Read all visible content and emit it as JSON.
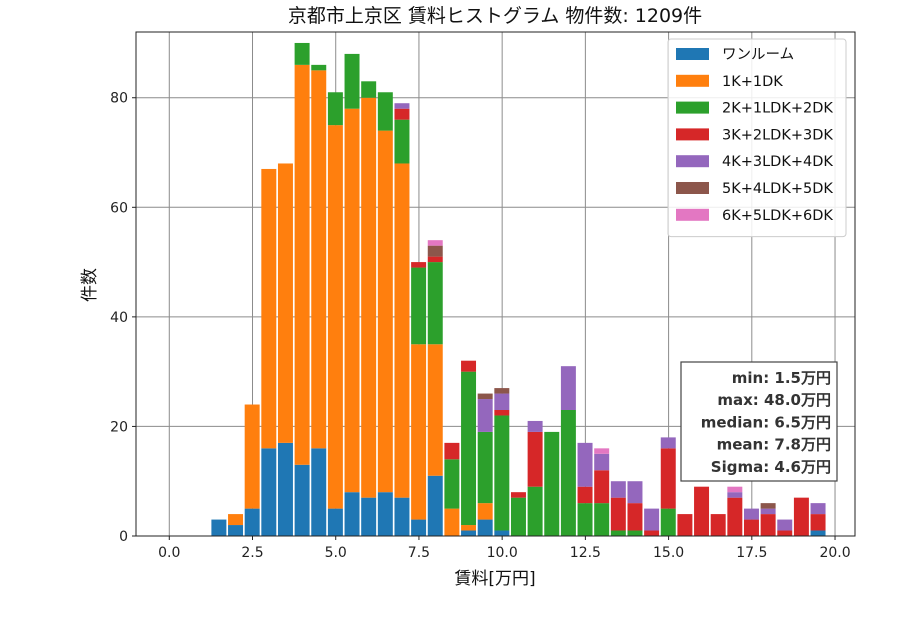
{
  "chart_data": {
    "type": "bar",
    "stacked": true,
    "title": "京都市上京区 賃料ヒストグラム 物件数: 1209件",
    "xlabel": "賃料[万円]",
    "ylabel": "件数",
    "xlim": [
      -1.0,
      20.6
    ],
    "ylim": [
      0,
      92
    ],
    "xticks": [
      "0.0",
      "2.5",
      "5.0",
      "7.5",
      "10.0",
      "12.5",
      "15.0",
      "17.5",
      "20.0"
    ],
    "xtick_values": [
      0,
      2.5,
      5,
      7.5,
      10,
      12.5,
      15,
      17.5,
      20
    ],
    "yticks": [
      "0",
      "20",
      "40",
      "60",
      "80"
    ],
    "ytick_values": [
      0,
      20,
      40,
      60,
      80
    ],
    "grid": true,
    "legend_position": "top-right",
    "bin_width": 0.5,
    "bin_starts": [
      1.25,
      1.75,
      2.25,
      2.75,
      3.25,
      3.75,
      4.25,
      4.75,
      5.25,
      5.75,
      6.25,
      6.75,
      7.25,
      7.75,
      8.25,
      8.75,
      9.25,
      9.75,
      10.25,
      10.75,
      11.25,
      11.75,
      12.25,
      12.75,
      13.25,
      13.75,
      14.25,
      14.75,
      15.25,
      15.75,
      16.25,
      16.75,
      17.25,
      17.75,
      18.25,
      18.75,
      19.25
    ],
    "series": [
      {
        "name": "ワンルーム",
        "color": "#1f77b4",
        "values": [
          3,
          2,
          5,
          16,
          17,
          13,
          16,
          5,
          8,
          7,
          8,
          7,
          3,
          11,
          0,
          1,
          3,
          1,
          0,
          0,
          0,
          0,
          0,
          0,
          0,
          0,
          0,
          0,
          0,
          0,
          0,
          0,
          0,
          0,
          0,
          0,
          1
        ]
      },
      {
        "name": "1K+1DK",
        "color": "#ff7f0e",
        "values": [
          0,
          2,
          19,
          51,
          51,
          73,
          69,
          70,
          70,
          73,
          66,
          61,
          32,
          24,
          5,
          1,
          3,
          0,
          0,
          0,
          0,
          0,
          0,
          0,
          0,
          0,
          0,
          0,
          0,
          0,
          0,
          0,
          0,
          0,
          0,
          0,
          0
        ]
      },
      {
        "name": "2K+1LDK+2DK",
        "color": "#2ca02c",
        "values": [
          0,
          0,
          0,
          0,
          0,
          4,
          1,
          6,
          10,
          3,
          7,
          8,
          14,
          15,
          9,
          28,
          13,
          21,
          7,
          9,
          19,
          23,
          6,
          6,
          1,
          1,
          0,
          5,
          0,
          0,
          0,
          0,
          0,
          0,
          0,
          0,
          0
        ]
      },
      {
        "name": "3K+2LDK+3DK",
        "color": "#d62728",
        "values": [
          0,
          0,
          0,
          0,
          0,
          0,
          0,
          0,
          0,
          0,
          0,
          2,
          1,
          1,
          3,
          2,
          0,
          1,
          1,
          10,
          0,
          0,
          3,
          6,
          6,
          5,
          1,
          11,
          4,
          9,
          4,
          7,
          3,
          4,
          1,
          7,
          3
        ]
      },
      {
        "name": "4K+3LDK+4DK",
        "color": "#9467bd",
        "values": [
          0,
          0,
          0,
          0,
          0,
          0,
          0,
          0,
          0,
          0,
          0,
          1,
          0,
          0,
          0,
          0,
          6,
          3,
          0,
          2,
          0,
          8,
          8,
          3,
          3,
          4,
          4,
          2,
          0,
          0,
          0,
          1,
          2,
          1,
          2,
          0,
          2
        ]
      },
      {
        "name": "5K+4LDK+5DK",
        "color": "#8c564b",
        "values": [
          0,
          0,
          0,
          0,
          0,
          0,
          0,
          0,
          0,
          0,
          0,
          0,
          0,
          2,
          0,
          0,
          1,
          1,
          0,
          0,
          0,
          0,
          0,
          0,
          0,
          0,
          0,
          0,
          0,
          0,
          0,
          0,
          0,
          1,
          0,
          0,
          0
        ]
      },
      {
        "name": "6K+5LDK+6DK",
        "color": "#e377c2",
        "values": [
          0,
          0,
          0,
          0,
          0,
          0,
          0,
          0,
          0,
          0,
          0,
          0,
          0,
          1,
          0,
          0,
          0,
          0,
          0,
          0,
          0,
          0,
          0,
          1,
          0,
          0,
          0,
          0,
          0,
          0,
          0,
          1,
          0,
          0,
          0,
          0,
          0
        ]
      }
    ],
    "annotation": {
      "lines": [
        "min: 1.5万円",
        "max: 48.0万円",
        "median: 6.5万円",
        "mean: 7.8万円",
        "Sigma: 4.6万円"
      ]
    }
  }
}
